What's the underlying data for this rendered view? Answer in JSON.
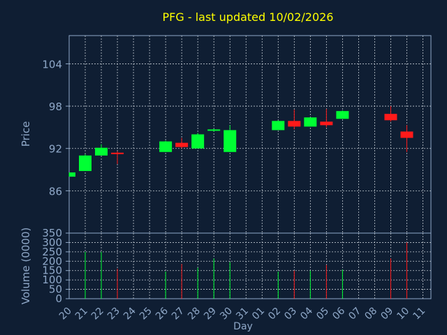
{
  "chart_data": {
    "type": "candlestick",
    "title": "PFG - last updated 10/02/2026",
    "xlabel": "Day",
    "ylabel": "Price",
    "volume_label": "Volume (0000)",
    "price_ticks": [
      86,
      92,
      98,
      104
    ],
    "price_range": [
      80,
      108
    ],
    "volume_ticks": [
      0,
      50,
      100,
      150,
      200,
      250,
      300,
      350
    ],
    "volume_range": [
      0,
      350
    ],
    "x_labels": [
      "20",
      "21",
      "22",
      "23",
      "24",
      "25",
      "26",
      "27",
      "28",
      "29",
      "30",
      "31",
      "01",
      "02",
      "03",
      "04",
      "05",
      "06",
      "07",
      "08",
      "09",
      "10",
      "11"
    ],
    "grid": true,
    "colors": {
      "background": "#0f1e33",
      "up": "#00ff33",
      "down": "#ff1a1a",
      "axis": "#8fa8c8",
      "grid": "#c0c8d0",
      "title": "#ffff00",
      "tick_label": "#8fa8c8"
    },
    "candles": [
      {
        "day": "20",
        "open": 88.0,
        "high": 88.6,
        "low": 88.0,
        "close": 88.6,
        "volume": 0
      },
      {
        "day": "21",
        "open": 88.8,
        "high": 91.2,
        "low": 88.8,
        "close": 91.0,
        "volume": 250
      },
      {
        "day": "22",
        "open": 91.0,
        "high": 92.6,
        "low": 91.0,
        "close": 92.1,
        "volume": 250
      },
      {
        "day": "23",
        "open": 91.4,
        "high": 91.6,
        "low": 89.8,
        "close": 91.2,
        "volume": 160
      },
      {
        "day": "26",
        "open": 91.5,
        "high": 93.1,
        "low": 91.5,
        "close": 93.0,
        "volume": 145
      },
      {
        "day": "27",
        "open": 92.8,
        "high": 93.5,
        "low": 92.0,
        "close": 92.2,
        "volume": 185
      },
      {
        "day": "28",
        "open": 92.0,
        "high": 94.2,
        "low": 92.0,
        "close": 94.0,
        "volume": 165
      },
      {
        "day": "29",
        "open": 94.6,
        "high": 94.8,
        "low": 94.4,
        "close": 94.7,
        "volume": 215
      },
      {
        "day": "30",
        "open": 91.5,
        "high": 95.3,
        "low": 91.5,
        "close": 94.6,
        "volume": 195
      },
      {
        "day": "02",
        "open": 94.6,
        "high": 96.0,
        "low": 94.6,
        "close": 95.9,
        "volume": 145
      },
      {
        "day": "03",
        "open": 95.9,
        "high": 97.5,
        "low": 94.7,
        "close": 95.1,
        "volume": 150
      },
      {
        "day": "04",
        "open": 95.1,
        "high": 96.4,
        "low": 95.1,
        "close": 96.4,
        "volume": 150
      },
      {
        "day": "05",
        "open": 95.8,
        "high": 97.6,
        "low": 95.0,
        "close": 95.3,
        "volume": 180
      },
      {
        "day": "06",
        "open": 96.2,
        "high": 97.4,
        "low": 96.2,
        "close": 97.3,
        "volume": 155
      },
      {
        "day": "09",
        "open": 96.9,
        "high": 98.0,
        "low": 95.8,
        "close": 96.0,
        "volume": 215
      },
      {
        "day": "10",
        "open": 94.4,
        "high": 95.3,
        "low": 91.5,
        "close": 93.5,
        "volume": 300
      }
    ]
  }
}
